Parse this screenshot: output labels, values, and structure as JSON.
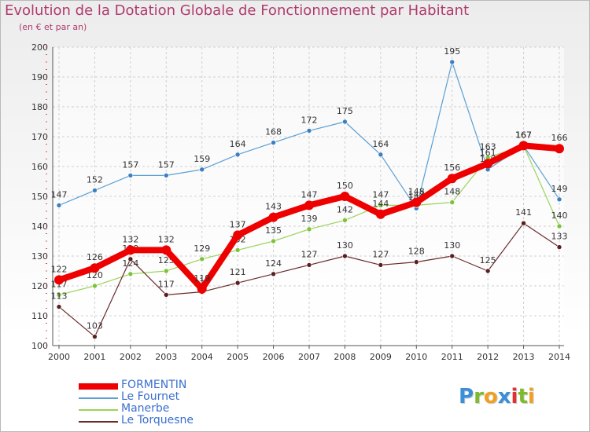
{
  "title": "Evolution de la Dotation Globale de Fonctionnement par Habitant",
  "subtitle": "(en € et par an)",
  "logo": {
    "letters": [
      "P",
      "r",
      "o",
      "x",
      "i",
      "t",
      "i"
    ],
    "colors": [
      "#3a8fd8",
      "#7dbb2a",
      "#f0a020",
      "#3a8fd8",
      "#e03030",
      "#7dbb2a",
      "#f0a020"
    ]
  },
  "chart_data": {
    "type": "line",
    "x": [
      2000,
      2001,
      2002,
      2003,
      2004,
      2005,
      2006,
      2007,
      2008,
      2009,
      2010,
      2011,
      2012,
      2013,
      2014
    ],
    "ylim": [
      100,
      200
    ],
    "yticks": [
      100,
      110,
      120,
      130,
      140,
      150,
      160,
      170,
      180,
      190,
      200
    ],
    "grid": true,
    "legend_placement": "bottom-left",
    "series": [
      {
        "name": "Le Fournet",
        "color": "#5a9fd4",
        "point_color": "#3a7fc0",
        "width": 1.2,
        "values": [
          147,
          152,
          157,
          157,
          159,
          164,
          168,
          172,
          175,
          164,
          146,
          195,
          159,
          167,
          149
        ],
        "labels": [
          "147",
          "152",
          "157",
          "157",
          "159",
          "164",
          "168",
          "172",
          "175",
          "164",
          "146",
          "195",
          "159",
          "167",
          "149"
        ]
      },
      {
        "name": "Manerbe",
        "color": "#9ad35a",
        "point_color": "#7cc23a",
        "width": 1.2,
        "values": [
          117,
          120,
          124,
          125,
          129,
          132,
          135,
          139,
          142,
          147,
          147,
          148,
          163,
          167,
          140
        ],
        "labels": [
          "117",
          "120",
          "124",
          "125",
          "129",
          "132",
          "135",
          "139",
          "142",
          "147",
          "147",
          "148",
          "163",
          "167",
          "140"
        ]
      },
      {
        "name": "Le Torquesne",
        "color": "#6a2a2a",
        "point_color": "#5a2020",
        "width": 1.2,
        "values": [
          113,
          103,
          129,
          117,
          118,
          121,
          124,
          127,
          130,
          127,
          128,
          130,
          125,
          141,
          133
        ],
        "labels": [
          "113",
          "103",
          "129",
          "117",
          "118",
          "121",
          "124",
          "127",
          "130",
          "127",
          "128",
          "130",
          "125",
          "141",
          "133"
        ]
      },
      {
        "name": "FORMENTIN",
        "color": "#ee0000",
        "point_color": "#ee0000",
        "width": 8,
        "values": [
          122,
          126,
          132,
          132,
          119,
          137,
          143,
          147,
          150,
          144,
          148,
          156,
          161,
          167,
          166
        ],
        "labels": [
          "122",
          "126",
          "132",
          "132",
          "119",
          "137",
          "143",
          "147",
          "150",
          "144",
          "148",
          "156",
          "161",
          "167",
          "166"
        ]
      }
    ],
    "legend": [
      {
        "name": "FORMENTIN",
        "color": "#ee0000",
        "width": 8
      },
      {
        "name": "Le Fournet",
        "color": "#5a9fd4",
        "width": 2
      },
      {
        "name": "Manerbe",
        "color": "#9ad35a",
        "width": 2
      },
      {
        "name": "Le Torquesne",
        "color": "#6a2a2a",
        "width": 2
      }
    ]
  }
}
